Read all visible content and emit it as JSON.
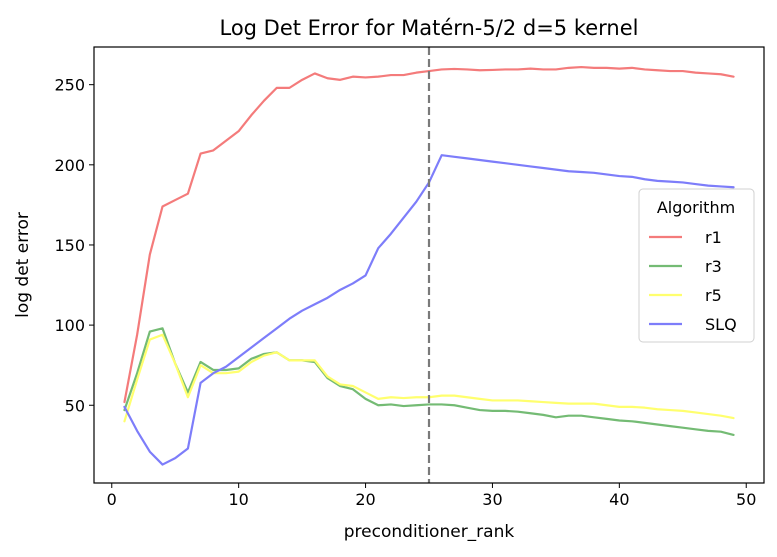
{
  "chart_data": {
    "type": "line",
    "title": "Log Det Error for Matérn-5/2 d=5 kernel",
    "xlabel": "preconditioner_rank",
    "ylabel": "log det error",
    "xlim": [
      -1.4,
      51.4
    ],
    "ylim": [
      1.5,
      273.5
    ],
    "xticks": [
      0,
      10,
      20,
      30,
      40,
      50
    ],
    "yticks": [
      50,
      100,
      150,
      200,
      250
    ],
    "grid": false,
    "legend": {
      "title": "Algorithm",
      "position": "center-right"
    },
    "vline": {
      "x": 25,
      "style": "dashed",
      "color": "#7a7a7a"
    },
    "x": [
      1,
      2,
      3,
      4,
      5,
      6,
      7,
      8,
      9,
      10,
      11,
      12,
      13,
      14,
      15,
      16,
      17,
      18,
      19,
      20,
      21,
      22,
      23,
      24,
      25,
      26,
      27,
      28,
      29,
      30,
      31,
      32,
      33,
      34,
      35,
      36,
      37,
      38,
      39,
      40,
      41,
      42,
      43,
      44,
      45,
      46,
      47,
      48,
      49
    ],
    "series": [
      {
        "name": "r1",
        "color": "#f47b7b",
        "values": [
          52,
          94,
          144,
          174,
          178,
          182,
          207,
          209,
          215,
          221,
          231,
          240,
          248,
          248,
          253,
          257,
          254,
          253,
          255,
          254.5,
          255,
          256,
          256,
          257.5,
          258.5,
          259.5,
          259.8,
          259.5,
          259,
          259.2,
          259.5,
          259.5,
          260,
          259.5,
          259.5,
          260.5,
          261,
          260.5,
          260.5,
          260,
          260.5,
          259.5,
          259,
          258.5,
          258.5,
          257.5,
          257,
          256.5,
          255
        ]
      },
      {
        "name": "r3",
        "color": "#74bb74",
        "values": [
          47,
          70,
          96,
          98,
          76,
          58,
          77,
          72,
          72,
          73,
          79,
          82,
          83,
          78,
          78,
          77,
          67,
          62,
          60,
          54,
          50,
          50.5,
          49.5,
          50,
          50.5,
          50.5,
          50,
          48.5,
          47,
          46.5,
          46.5,
          46,
          45,
          44,
          42.5,
          43.5,
          43.5,
          42.5,
          41.5,
          40.5,
          40,
          39,
          38,
          37,
          36,
          35,
          34,
          33.5,
          31.5
        ]
      },
      {
        "name": "r5",
        "color": "#ffff6e",
        "values": [
          40,
          66,
          91,
          94,
          76,
          55,
          75,
          70,
          70,
          71,
          77,
          81,
          83,
          78,
          78,
          78,
          68,
          63,
          62,
          58,
          54,
          55,
          54.5,
          55,
          55,
          56,
          56,
          55,
          54,
          53,
          53,
          53,
          52.5,
          52,
          51.5,
          51,
          51,
          51,
          50,
          49,
          49,
          48.5,
          47.5,
          47,
          46.5,
          45.5,
          44.5,
          43.5,
          42
        ]
      },
      {
        "name": "SLQ",
        "color": "#7d7dfa",
        "values": [
          49,
          34,
          21,
          13,
          17,
          23,
          64,
          70,
          74,
          80,
          86,
          92,
          98,
          104,
          109,
          113,
          117,
          122,
          126,
          131,
          148,
          157,
          167,
          177,
          189,
          206,
          205,
          204,
          203,
          202,
          201,
          200,
          199,
          198,
          197,
          196,
          195.5,
          195,
          194,
          193,
          192.5,
          191,
          190,
          189.5,
          189,
          188,
          187,
          186.5,
          186
        ]
      }
    ]
  }
}
